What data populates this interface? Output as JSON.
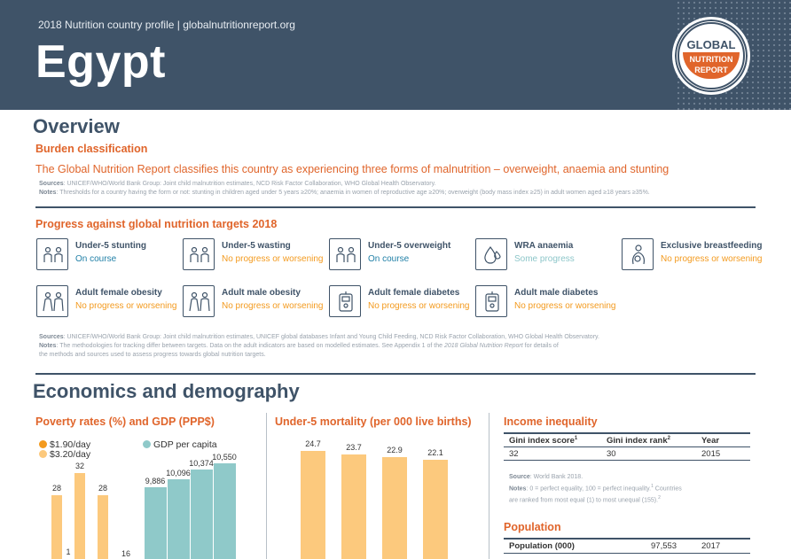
{
  "header": {
    "subtitle": "2018 Nutrition country profile  |  globalnutritionreport.org",
    "country": "Egypt",
    "logo": {
      "top": "GLOBAL",
      "line1": "NUTRITION",
      "line2": "REPORT"
    }
  },
  "overview": {
    "title": "Overview",
    "burden": {
      "heading": "Burden classification",
      "text": "The Global Nutrition Report classifies this country as experiencing three forms of malnutrition – overweight, anaemia and stunting",
      "sources_label": "Sources",
      "sources": ": UNICEF/WHO/World Bank Group: Joint child malnutrition estimates, NCD Risk Factor Collaboration, WHO Global Health Observatory.",
      "notes_label": "Notes",
      "notes": ": Thresholds for a country having the form or not: stunting in children aged under 5 years ≥20%; anaemia in women of reproductive age ≥20%; overweight (body mass index ≥25) in adult women aged ≥18 years ≥35%."
    },
    "progress": {
      "heading": "Progress against global nutrition targets 2018",
      "targets": [
        {
          "name": "Under-5 stunting",
          "status": "On course",
          "kind": "on",
          "icon": "children-icon"
        },
        {
          "name": "Under-5 wasting",
          "status": "No progress or worsening",
          "kind": "no",
          "icon": "children-icon"
        },
        {
          "name": "Under-5 overweight",
          "status": "On course",
          "kind": "on",
          "icon": "children-icon"
        },
        {
          "name": "WRA anaemia",
          "status": "Some progress",
          "kind": "some",
          "icon": "blood-drop-icon"
        },
        {
          "name": "Exclusive breastfeeding",
          "status": "No progress or worsening",
          "kind": "no",
          "icon": "breastfeeding-icon"
        },
        {
          "name": "Adult female obesity",
          "status": "No progress or worsening",
          "kind": "no",
          "icon": "adults-icon"
        },
        {
          "name": "Adult male obesity",
          "status": "No progress or worsening",
          "kind": "no",
          "icon": "adults-icon"
        },
        {
          "name": "Adult female diabetes",
          "status": "No progress or worsening",
          "kind": "no",
          "icon": "glucose-meter-icon"
        },
        {
          "name": "Adult male diabetes",
          "status": "No progress or worsening",
          "kind": "no",
          "icon": "glucose-meter-icon"
        }
      ],
      "sources_label": "Sources",
      "sources": ": UNICEF/WHO/World Bank Group: Joint child malnutrition estimates, UNICEF global databases Infant and Young Child Feeding, NCD Risk Factor Collaboration, WHO Global Health Observatory.",
      "notes_label": "Notes",
      "notes_line1": ": The methodologies for tracking differ between targets. Data on the adult indicators are based on modelled estimates. See Appendix 1 of the ",
      "notes_italic": "2018 Global Nutrition Report",
      "notes_line1_end": " for details of",
      "notes_line2": "the methods and sources used to assess progress towards global nutrition targets."
    }
  },
  "economics": {
    "title": "Economics and demography",
    "poverty": {
      "heading": "Poverty rates (%) and GDP (PPP$)",
      "legend_190": "$1.90/day",
      "legend_320": "$3.20/day",
      "legend_gdp": "GDP per capita",
      "colors": {
        "p190": "#f39a1e",
        "p320": "#fcc97d",
        "gdp": "#8fc9c9"
      }
    },
    "mortality": {
      "heading": "Under-5 mortality (per 000 live births)",
      "color": "#fcc97d"
    },
    "inequality": {
      "heading": "Income inequality",
      "columns": [
        "Gini index score",
        "Gini index rank",
        "Year"
      ],
      "superscripts": [
        "1",
        "2"
      ],
      "row": [
        "32",
        "30",
        "2015"
      ],
      "source_label": "Source",
      "source": ": World Bank 2018.",
      "notes_label": "Notes",
      "notes_line1": ": 0 = perfect equality, 100 = perfect inequality.",
      "notes_sup1": "1",
      "notes_line1_end": " Countries",
      "notes_line2": "are ranked from most equal (1) to most unequal (155).",
      "notes_sup2": "2"
    },
    "population": {
      "heading": "Population",
      "label": "Population (000)",
      "value": "97,553",
      "year": "2017"
    }
  },
  "chart_data": [
    {
      "type": "bar",
      "series": [
        {
          "name": "$1.90/day",
          "values": [
            1.3
          ]
        },
        {
          "name": "$3.20/day",
          "values": [
            28,
            32,
            28,
            16
          ]
        },
        {
          "name": "GDP per capita",
          "values": [
            9.886,
            10.096,
            10.374,
            10.55
          ]
        }
      ],
      "data_labels": [
        "28",
        "1",
        "32",
        "28",
        "16",
        "9,886",
        "10,096",
        "10,374",
        "10,550"
      ],
      "title": "Poverty rates (%) and GDP (PPP$)"
    },
    {
      "type": "bar",
      "values": [
        24.7,
        23.7,
        22.9,
        22.1
      ],
      "data_labels": [
        "24.7",
        "23.7",
        "22.9",
        "22.1"
      ],
      "title": "Under-5 mortality (per 000 live births)"
    }
  ]
}
